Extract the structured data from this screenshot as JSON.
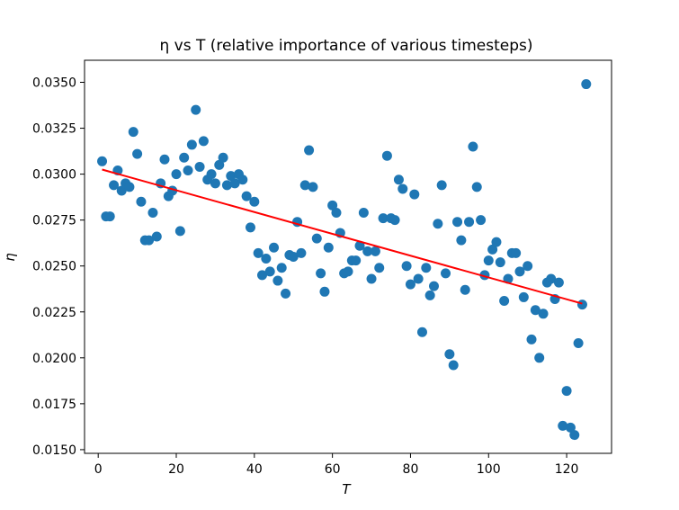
{
  "chart_data": {
    "type": "scatter",
    "title": "η vs T (relative importance of various timesteps)",
    "xlabel": "T",
    "ylabel": "η",
    "xlim": [
      -3.5,
      131.5
    ],
    "ylim": [
      0.0148,
      0.0362
    ],
    "xticks": [
      0,
      20,
      40,
      60,
      80,
      100,
      120
    ],
    "yticks": [
      0.015,
      0.0175,
      0.02,
      0.0225,
      0.025,
      0.0275,
      0.03,
      0.0325,
      0.035
    ],
    "ytick_labels": [
      "0.0150",
      "0.0175",
      "0.0200",
      "0.0225",
      "0.0250",
      "0.0275",
      "0.0300",
      "0.0325",
      "0.0350"
    ],
    "grid": false,
    "point_color": "#1f77b4",
    "line_color": "#ff0000",
    "points": [
      [
        1,
        0.0307
      ],
      [
        2,
        0.0277
      ],
      [
        3,
        0.0277
      ],
      [
        4,
        0.0294
      ],
      [
        5,
        0.0302
      ],
      [
        6,
        0.0291
      ],
      [
        7,
        0.0295
      ],
      [
        8,
        0.0293
      ],
      [
        9,
        0.0323
      ],
      [
        10,
        0.0311
      ],
      [
        11,
        0.0285
      ],
      [
        12,
        0.0264
      ],
      [
        13,
        0.0264
      ],
      [
        14,
        0.0279
      ],
      [
        15,
        0.0266
      ],
      [
        16,
        0.0295
      ],
      [
        17,
        0.0308
      ],
      [
        18,
        0.0288
      ],
      [
        19,
        0.0291
      ],
      [
        20,
        0.03
      ],
      [
        21,
        0.0269
      ],
      [
        22,
        0.0309
      ],
      [
        23,
        0.0302
      ],
      [
        24,
        0.0316
      ],
      [
        25,
        0.0335
      ],
      [
        26,
        0.0304
      ],
      [
        27,
        0.0318
      ],
      [
        28,
        0.0297
      ],
      [
        29,
        0.03
      ],
      [
        30,
        0.0295
      ],
      [
        31,
        0.0305
      ],
      [
        32,
        0.0309
      ],
      [
        33,
        0.0294
      ],
      [
        34,
        0.0299
      ],
      [
        35,
        0.0295
      ],
      [
        36,
        0.03
      ],
      [
        37,
        0.0297
      ],
      [
        38,
        0.0288
      ],
      [
        39,
        0.0271
      ],
      [
        40,
        0.0285
      ],
      [
        41,
        0.0257
      ],
      [
        42,
        0.0245
      ],
      [
        43,
        0.0254
      ],
      [
        44,
        0.0247
      ],
      [
        45,
        0.026
      ],
      [
        46,
        0.0242
      ],
      [
        47,
        0.0249
      ],
      [
        48,
        0.0235
      ],
      [
        49,
        0.0256
      ],
      [
        50,
        0.0255
      ],
      [
        51,
        0.0274
      ],
      [
        52,
        0.0257
      ],
      [
        53,
        0.0294
      ],
      [
        54,
        0.0313
      ],
      [
        55,
        0.0293
      ],
      [
        56,
        0.0265
      ],
      [
        57,
        0.0246
      ],
      [
        58,
        0.0236
      ],
      [
        59,
        0.026
      ],
      [
        60,
        0.0283
      ],
      [
        61,
        0.0279
      ],
      [
        62,
        0.0268
      ],
      [
        63,
        0.0246
      ],
      [
        64,
        0.0247
      ],
      [
        65,
        0.0253
      ],
      [
        66,
        0.0253
      ],
      [
        67,
        0.0261
      ],
      [
        68,
        0.0279
      ],
      [
        69,
        0.0258
      ],
      [
        70,
        0.0243
      ],
      [
        71,
        0.0258
      ],
      [
        72,
        0.0249
      ],
      [
        73,
        0.0276
      ],
      [
        74,
        0.031
      ],
      [
        75,
        0.0276
      ],
      [
        76,
        0.0275
      ],
      [
        77,
        0.0297
      ],
      [
        78,
        0.0292
      ],
      [
        79,
        0.025
      ],
      [
        80,
        0.024
      ],
      [
        81,
        0.0289
      ],
      [
        82,
        0.0243
      ],
      [
        83,
        0.0214
      ],
      [
        84,
        0.0249
      ],
      [
        85,
        0.0234
      ],
      [
        86,
        0.0239
      ],
      [
        87,
        0.0273
      ],
      [
        88,
        0.0294
      ],
      [
        89,
        0.0246
      ],
      [
        90,
        0.0202
      ],
      [
        91,
        0.0196
      ],
      [
        92,
        0.0274
      ],
      [
        93,
        0.0264
      ],
      [
        94,
        0.0237
      ],
      [
        95,
        0.0274
      ],
      [
        96,
        0.0315
      ],
      [
        97,
        0.0293
      ],
      [
        98,
        0.0275
      ],
      [
        99,
        0.0245
      ],
      [
        100,
        0.0253
      ],
      [
        101,
        0.0259
      ],
      [
        102,
        0.0263
      ],
      [
        103,
        0.0252
      ],
      [
        104,
        0.0231
      ],
      [
        105,
        0.0243
      ],
      [
        106,
        0.0257
      ],
      [
        107,
        0.0257
      ],
      [
        108,
        0.0247
      ],
      [
        109,
        0.0233
      ],
      [
        110,
        0.025
      ],
      [
        111,
        0.021
      ],
      [
        112,
        0.0226
      ],
      [
        113,
        0.02
      ],
      [
        114,
        0.0224
      ],
      [
        115,
        0.0241
      ],
      [
        116,
        0.0243
      ],
      [
        117,
        0.0232
      ],
      [
        118,
        0.0241
      ],
      [
        119,
        0.0163
      ],
      [
        120,
        0.0182
      ],
      [
        121,
        0.0162
      ],
      [
        122,
        0.0158
      ],
      [
        123,
        0.0208
      ],
      [
        124,
        0.0229
      ],
      [
        125,
        0.0349
      ]
    ],
    "trend_line": {
      "x": [
        1,
        124
      ],
      "y": [
        0.03025,
        0.02295
      ]
    }
  }
}
